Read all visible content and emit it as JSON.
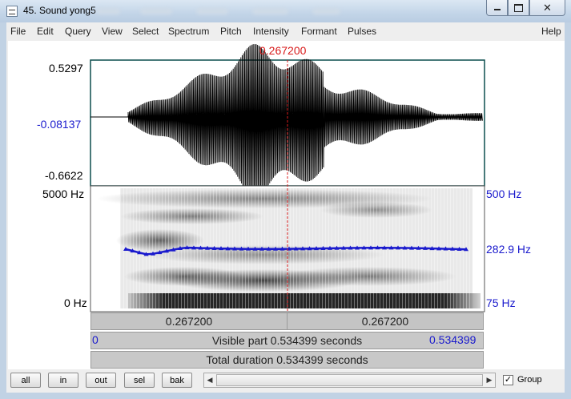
{
  "window": {
    "title": "45. Sound yong5",
    "minimize": "",
    "maximize": "",
    "close": "✕"
  },
  "menu": {
    "items": [
      "File",
      "Edit",
      "Query",
      "View",
      "Select",
      "Spectrum",
      "Pitch",
      "Intensity",
      "Formant",
      "Pulses"
    ],
    "help": "Help"
  },
  "cursor": {
    "time_label": "0.267200",
    "fraction": 0.5
  },
  "waveform": {
    "y_max": "0.5297",
    "y_mid": "-0.08137",
    "y_min": "-0.6622"
  },
  "spectrogram": {
    "freq_top": "5000 Hz",
    "freq_bottom": "0 Hz",
    "pitch_top": "500 Hz",
    "pitch_value": "282.9 Hz",
    "pitch_bottom": "75 Hz"
  },
  "time_bars": {
    "left_segment": "0.267200",
    "right_segment": "0.267200",
    "visible_start": "0",
    "visible_part": "Visible part 0.534399 seconds",
    "visible_end": "0.534399",
    "total_duration": "Total duration 0.534399 seconds"
  },
  "buttons": {
    "all": "all",
    "in": "in",
    "out": "out",
    "sel": "sel",
    "bak": "bak"
  },
  "scrollbar": {
    "left_arrow": "◀",
    "right_arrow": "▶"
  },
  "group": {
    "label": "Group",
    "checked": true,
    "check_mark": "✓"
  },
  "colors": {
    "cursor": "#d81b1b",
    "pitch_curve": "#1a1acd",
    "axis_labels_blue": "#1a1acd"
  }
}
